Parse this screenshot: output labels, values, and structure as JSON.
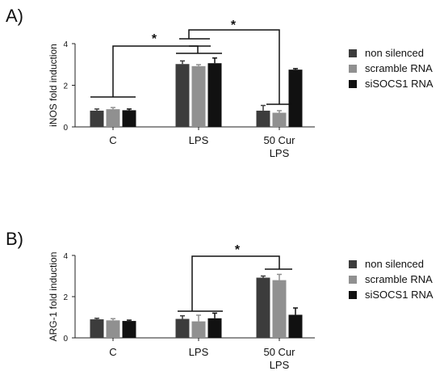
{
  "chart_data": [
    {
      "type": "bar",
      "panel_label": "A)",
      "ylabel": "iNOS fold induction",
      "ylim": [
        0,
        4
      ],
      "yticks": [
        "0",
        "2",
        "4"
      ],
      "categories": [
        "C",
        "LPS",
        "50 Cur LPS"
      ],
      "category_lines": [
        [
          "C"
        ],
        [
          "LPS"
        ],
        [
          "50 Cur",
          "LPS"
        ]
      ],
      "series": [
        {
          "name": "non silenced",
          "color": "#3c3c3c",
          "values": [
            0.78,
            3.02,
            0.78
          ],
          "errors": [
            0.08,
            0.15,
            0.25
          ]
        },
        {
          "name": "scramble RNA",
          "color": "#909090",
          "values": [
            0.85,
            2.92,
            0.68
          ],
          "errors": [
            0.08,
            0.07,
            0.1
          ]
        },
        {
          "name": "siSOCS1 RNA",
          "color": "#111111",
          "values": [
            0.8,
            3.06,
            2.75
          ],
          "errors": [
            0.06,
            0.25,
            0.05
          ]
        }
      ],
      "significance": "*",
      "legend_position": "right"
    },
    {
      "type": "bar",
      "panel_label": "B)",
      "ylabel": "ARG-1 fold induction",
      "ylim": [
        0,
        4
      ],
      "yticks": [
        "0",
        "2",
        "4"
      ],
      "categories": [
        "C",
        "LPS",
        "50 Cur LPS"
      ],
      "category_lines": [
        [
          "C"
        ],
        [
          "LPS"
        ],
        [
          "50 Cur",
          "LPS"
        ]
      ],
      "series": [
        {
          "name": "non silenced",
          "color": "#3c3c3c",
          "values": [
            0.9,
            0.92,
            2.92
          ],
          "errors": [
            0.05,
            0.15,
            0.08
          ]
        },
        {
          "name": "scramble RNA",
          "color": "#909090",
          "values": [
            0.85,
            0.8,
            2.8
          ],
          "errors": [
            0.08,
            0.3,
            0.28
          ]
        },
        {
          "name": "siSOCS1 RNA",
          "color": "#111111",
          "values": [
            0.82,
            0.95,
            1.12
          ],
          "errors": [
            0.04,
            0.25,
            0.33
          ]
        }
      ],
      "significance": "*",
      "legend_position": "right"
    }
  ]
}
